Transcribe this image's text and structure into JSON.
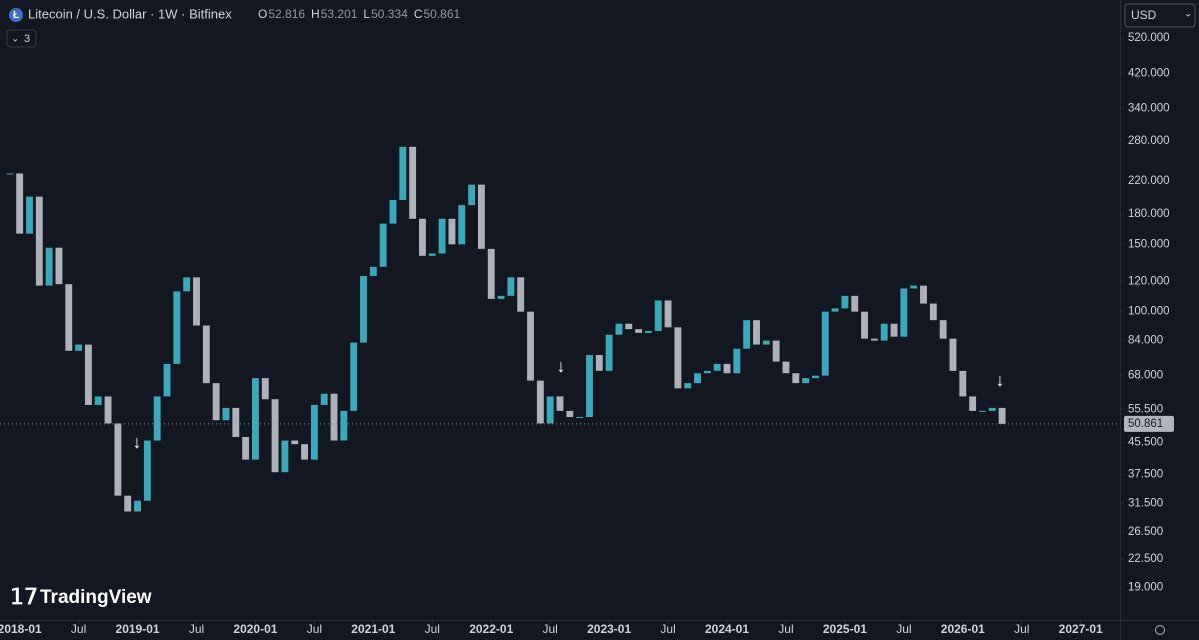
{
  "header": {
    "title": "Litecoin / U.S. Dollar · 1W · Bitfinex",
    "ohlc": [
      {
        "label": "O",
        "value": 52.816
      },
      {
        "label": "H",
        "value": 53.201
      },
      {
        "label": "L",
        "value": 50.334
      },
      {
        "label": "C",
        "value": 50.861
      }
    ],
    "indicators": 3,
    "currency": "USD",
    "watermark": "TradingView"
  },
  "chart_data": {
    "type": "candlestick",
    "log_scale": true,
    "up_color": "#3aa9b9",
    "down_color": "#aeb1ba",
    "x": [
      "2017-12",
      "2018-01",
      "2018-02",
      "2018-03",
      "2018-04",
      "2018-05",
      "2018-06",
      "2018-07",
      "2018-08",
      "2018-09",
      "2018-10",
      "2018-11",
      "2018-12",
      "2019-01",
      "2019-02",
      "2019-03",
      "2019-04",
      "2019-05",
      "2019-06",
      "2019-07",
      "2019-08",
      "2019-09",
      "2019-10",
      "2019-11",
      "2019-12",
      "2020-01",
      "2020-02",
      "2020-03",
      "2020-04",
      "2020-05",
      "2020-06",
      "2020-07",
      "2020-08",
      "2020-09",
      "2020-10",
      "2020-11",
      "2020-12",
      "2021-01",
      "2021-02",
      "2021-03",
      "2021-04",
      "2021-05",
      "2021-06",
      "2021-07",
      "2021-08",
      "2021-09",
      "2021-10",
      "2021-11",
      "2021-12",
      "2022-01",
      "2022-02",
      "2022-03",
      "2022-04",
      "2022-05",
      "2022-06",
      "2022-07",
      "2022-08",
      "2022-09",
      "2022-10",
      "2022-11",
      "2022-12",
      "2023-01",
      "2023-02",
      "2023-03",
      "2023-04",
      "2023-05",
      "2023-06",
      "2023-07",
      "2023-08",
      "2023-09",
      "2023-10",
      "2023-11",
      "2023-12",
      "2024-01",
      "2024-02",
      "2024-03",
      "2024-04",
      "2024-05",
      "2024-06",
      "2024-07",
      "2024-08",
      "2024-09",
      "2024-10",
      "2024-11",
      "2024-12",
      "2025-01",
      "2025-02",
      "2025-03",
      "2025-04",
      "2025-05",
      "2025-06",
      "2025-07",
      "2025-08",
      "2025-09",
      "2025-10",
      "2025-11",
      "2025-12",
      "2026-01",
      "2026-02",
      "2026-03",
      "2026-04",
      "2026-05"
    ],
    "close": [
      230,
      160,
      200,
      117,
      147,
      118,
      79,
      82,
      57,
      60,
      51,
      33,
      30,
      32,
      46,
      60,
      73,
      113,
      123,
      92,
      65,
      52,
      56,
      47,
      41,
      67,
      59,
      38,
      46,
      45,
      41,
      57,
      61,
      46,
      55,
      83,
      124,
      131,
      170,
      196,
      270,
      175,
      140,
      142,
      175,
      150,
      190,
      215,
      146,
      108,
      110,
      123,
      100,
      66,
      51,
      60,
      55,
      53,
      53,
      77,
      70,
      87,
      93,
      90,
      88,
      89,
      107,
      91,
      63,
      65,
      69,
      70,
      73,
      69,
      80,
      95,
      82,
      84,
      74,
      69,
      65,
      67,
      68,
      100,
      102,
      110,
      100,
      85,
      84,
      93,
      86,
      115,
      117,
      105,
      95,
      85,
      70,
      60,
      55,
      55,
      56,
      50.861
    ],
    "xlim": [
      "2017-11",
      "2027-05"
    ],
    "xticks": [
      "2018-01",
      {
        "value": "2018-07",
        "label": "Jul"
      },
      "2019-01",
      {
        "value": "2019-07",
        "label": "Jul"
      },
      "2020-01",
      {
        "value": "2020-07",
        "label": "Jul"
      },
      "2021-01",
      {
        "value": "2021-07",
        "label": "Jul"
      },
      "2022-01",
      {
        "value": "2022-07",
        "label": "Jul"
      },
      "2023-01",
      {
        "value": "2023-07",
        "label": "Jul"
      },
      "2024-01",
      {
        "value": "2024-07",
        "label": "Jul"
      },
      "2025-01",
      {
        "value": "2025-07",
        "label": "Jul"
      },
      "2026-01",
      {
        "value": "2026-07",
        "label": "Jul"
      },
      "2027-01"
    ],
    "ylim": [
      15.6,
      654
    ],
    "yticks": [
      {
        "value": 19,
        "label": "19.000"
      },
      {
        "value": 22.5,
        "label": "22.500"
      },
      {
        "value": 26.5,
        "label": "26.500"
      },
      {
        "value": 31.5,
        "label": "31.500"
      },
      {
        "value": 37.5,
        "label": "37.500"
      },
      {
        "value": 45.5,
        "label": "45.500"
      },
      {
        "value": 55.5,
        "label": "55.500"
      },
      {
        "value": 68,
        "label": "68.000"
      },
      {
        "value": 84,
        "label": "84.000"
      },
      {
        "value": 100,
        "label": "100.000"
      },
      {
        "value": 120,
        "label": "120.000"
      },
      {
        "value": 150,
        "label": "150.000"
      },
      {
        "value": 180,
        "label": "180.000"
      },
      {
        "value": 220,
        "label": "220.000"
      },
      {
        "value": 280,
        "label": "280.000"
      },
      {
        "value": 340,
        "label": "340.000"
      },
      {
        "value": 420,
        "label": "420.000"
      },
      {
        "value": 520,
        "label": "520.000"
      }
    ],
    "last_price": 50.861
  }
}
